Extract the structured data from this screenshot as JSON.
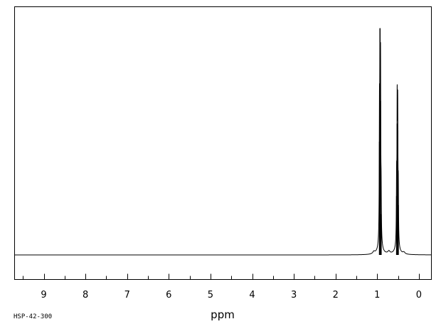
{
  "chart_data": {
    "type": "line",
    "title": "",
    "xlabel": "ppm",
    "ylabel": "",
    "spectrum_code": "HSP-42-300",
    "x_direction": "reversed",
    "xlim": [
      9.7,
      -0.3
    ],
    "ylim": [
      -0.1,
      1.0
    ],
    "grid": false,
    "baseline": 0,
    "tick_labels": [
      "9",
      "8",
      "7",
      "6",
      "5",
      "4",
      "3",
      "2",
      "1",
      "0"
    ],
    "tick_values": [
      9,
      8,
      7,
      6,
      5,
      4,
      3,
      2,
      1,
      0
    ],
    "peaks": [
      {
        "shift": 0.946,
        "intensity": 0.5,
        "width": 0.006
      },
      {
        "shift": 0.933,
        "intensity": 1.0,
        "width": 0.006
      },
      {
        "shift": 0.92,
        "intensity": 0.68,
        "width": 0.006
      },
      {
        "shift": 0.906,
        "intensity": 0.18,
        "width": 0.006
      },
      {
        "shift": 0.535,
        "intensity": 0.26,
        "width": 0.006
      },
      {
        "shift": 0.521,
        "intensity": 0.58,
        "width": 0.006
      },
      {
        "shift": 0.508,
        "intensity": 0.55,
        "width": 0.006
      },
      {
        "shift": 0.494,
        "intensity": 0.22,
        "width": 0.006
      }
    ],
    "broad_features": [
      {
        "shift": 1.08,
        "intensity": 0.01,
        "width": 0.03
      },
      {
        "shift": 0.93,
        "intensity": 0.03,
        "width": 0.06
      },
      {
        "shift": 0.72,
        "intensity": 0.012,
        "width": 0.03
      },
      {
        "shift": 0.52,
        "intensity": 0.03,
        "width": 0.06
      },
      {
        "shift": 0.36,
        "intensity": 0.008,
        "width": 0.03
      }
    ]
  }
}
